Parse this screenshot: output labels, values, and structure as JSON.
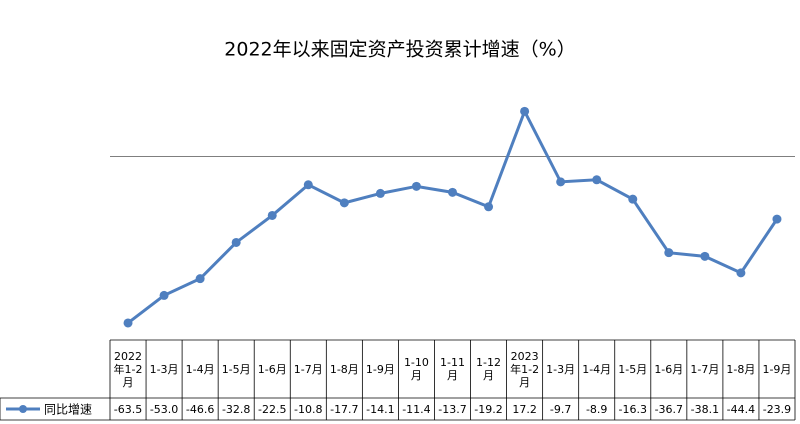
{
  "chart_data": {
    "type": "line",
    "title": "2022年以来固定资产投资累计增速（%）",
    "categories": [
      "2022年1-2月",
      "1-3月",
      "1-4月",
      "1-5月",
      "1-6月",
      "1-7月",
      "1-8月",
      "1-9月",
      "1-10月",
      "1-11月",
      "1-12月",
      "2023年1-2月",
      "1-3月",
      "1-4月",
      "1-5月",
      "1-6月",
      "1-7月",
      "1-8月",
      "1-9月"
    ],
    "series": [
      {
        "name": "同比增速",
        "color": "#4f7fbf",
        "values": [
          -63.5,
          -53.0,
          -46.6,
          -32.8,
          -22.5,
          -10.8,
          -17.7,
          -14.1,
          -11.4,
          -13.7,
          -19.2,
          17.2,
          -9.7,
          -8.9,
          -16.3,
          -36.7,
          -38.1,
          -44.4,
          -23.9
        ],
        "value_labels": [
          "-63.5",
          "-53.0",
          "-46.6",
          "-32.8",
          "-22.5",
          "-10.8",
          "-17.7",
          "-14.1",
          "-11.4",
          "-13.7",
          "-19.2",
          "17.2",
          "-9.7",
          "-8.9",
          "-16.3",
          "-36.7",
          "-38.1",
          "-44.4",
          "-23.9"
        ]
      }
    ],
    "ylim": [
      -70,
      20
    ]
  }
}
